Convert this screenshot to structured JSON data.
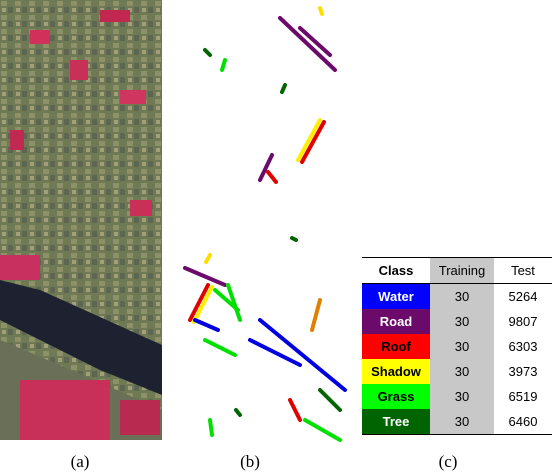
{
  "captions": [
    "(a)",
    "(b)",
    "(c)"
  ],
  "table": {
    "header": [
      "Class",
      "Training",
      "Test"
    ],
    "rows": [
      [
        "Water",
        "30",
        "5264"
      ],
      [
        "Road",
        "30",
        "9807"
      ],
      [
        "Roof",
        "30",
        "6303"
      ],
      [
        "Shadow",
        "30",
        "3973"
      ],
      [
        "Grass",
        "30",
        "6519"
      ],
      [
        "Tree",
        "30",
        "6460"
      ]
    ]
  }
}
